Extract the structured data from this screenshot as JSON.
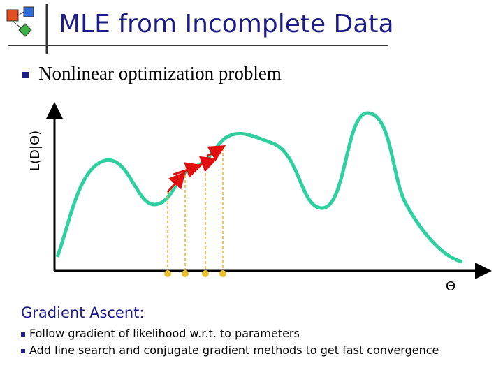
{
  "header": {
    "title": "MLE from Incomplete Data"
  },
  "bullet": "Nonlinear optimization problem",
  "figure": {
    "y_label": "L(D|Θ)",
    "x_label": "Θ"
  },
  "section": {
    "heading": "Gradient Ascent:",
    "items": [
      "Follow gradient of likelihood w.r.t. to parameters",
      "Add line search and conjugate gradient methods to get fast convergence"
    ]
  }
}
